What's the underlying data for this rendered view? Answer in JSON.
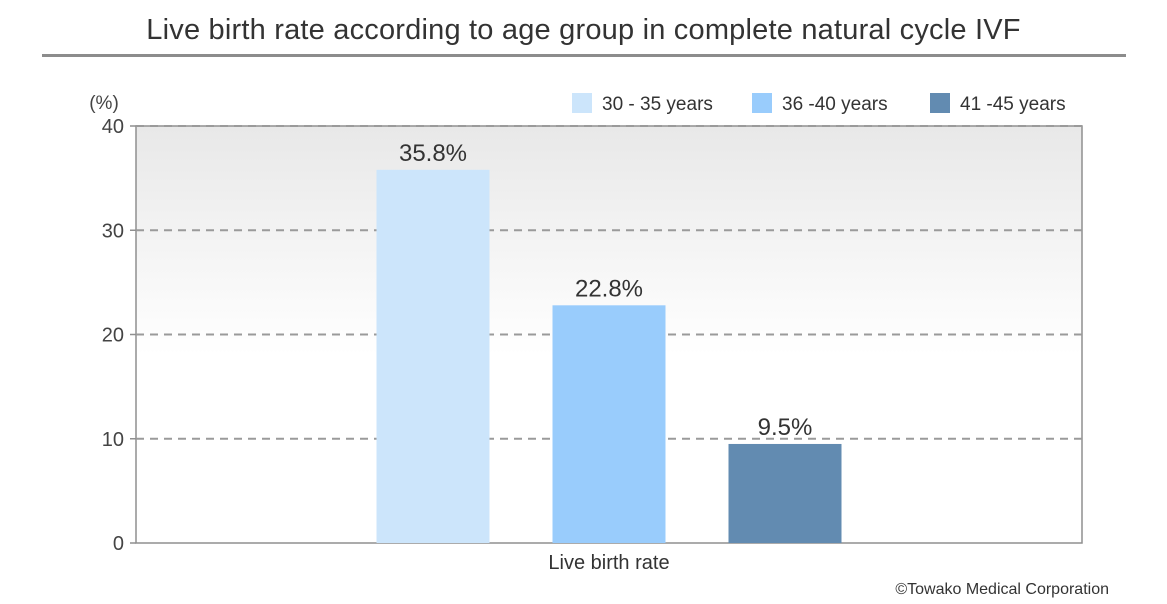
{
  "chart_data": {
    "type": "bar",
    "title": "Live birth rate according to age group in complete natural cycle IVF",
    "unit_label": "(%)",
    "categories": [
      "Live birth rate"
    ],
    "series": [
      {
        "name": "30 - 35 years",
        "values": [
          35.8
        ],
        "label": "35.8%",
        "color": "#cce5fb"
      },
      {
        "name": "36 -40 years",
        "values": [
          22.8
        ],
        "label": "22.8%",
        "color": "#99ccfc"
      },
      {
        "name": "41 -45 years",
        "values": [
          9.5
        ],
        "label": "9.5%",
        "color": "#628bb1"
      }
    ],
    "yticks": [
      "0",
      "10",
      "20",
      "30",
      "40"
    ],
    "ylim": [
      0,
      40
    ],
    "grid": true,
    "legend_position": "top-right"
  },
  "footer": {
    "copyright": "©Towako Medical Corporation"
  }
}
